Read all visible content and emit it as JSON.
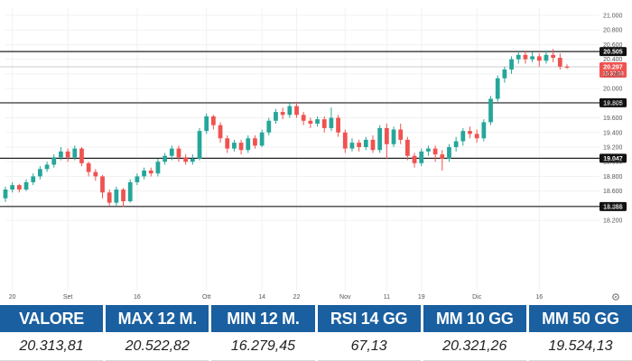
{
  "chart_data": {
    "type": "candlestick",
    "y_ticks": [
      "21.000",
      "20.800",
      "20.600",
      "20.400",
      "20.200",
      "20.000",
      "19.800",
      "19.600",
      "19.400",
      "19.200",
      "19.000",
      "18.800",
      "18.600",
      "18.400",
      "18.200"
    ],
    "x_ticks": [
      {
        "label": "20",
        "idx": 1
      },
      {
        "label": "Set",
        "idx": 9
      },
      {
        "label": "16",
        "idx": 19
      },
      {
        "label": "Ott",
        "idx": 29
      },
      {
        "label": "14",
        "idx": 37
      },
      {
        "label": "22",
        "idx": 42
      },
      {
        "label": "Nov",
        "idx": 49
      },
      {
        "label": "11",
        "idx": 55
      },
      {
        "label": "19",
        "idx": 60
      },
      {
        "label": "Dic",
        "idx": 68
      },
      {
        "label": "16",
        "idx": 77
      }
    ],
    "levels": [
      {
        "value": 20505,
        "label": "20.505"
      },
      {
        "value": 19805,
        "label": "19.805"
      },
      {
        "value": 19047,
        "label": "19.047"
      },
      {
        "value": 18388,
        "label": "18.388"
      }
    ],
    "last_price": {
      "value": 20297,
      "label": "20.297",
      "timer": "15:37:38"
    },
    "up_color": "#26a69a",
    "down_color": "#ef5350",
    "candles": [
      [
        18.5,
        18.62,
        18.45,
        18.66
      ],
      [
        18.62,
        18.68,
        18.58,
        18.72
      ],
      [
        18.68,
        18.62,
        18.58,
        18.7
      ],
      [
        18.62,
        18.72,
        18.6,
        18.76
      ],
      [
        18.72,
        18.8,
        18.68,
        18.84
      ],
      [
        18.8,
        18.9,
        18.76,
        18.94
      ],
      [
        18.9,
        18.96,
        18.86,
        19.0
      ],
      [
        18.96,
        19.06,
        18.92,
        19.1
      ],
      [
        19.06,
        19.14,
        19.02,
        19.2
      ],
      [
        19.14,
        19.06,
        19.0,
        19.18
      ],
      [
        19.06,
        19.18,
        19.02,
        19.22
      ],
      [
        19.18,
        18.98,
        18.94,
        19.2
      ],
      [
        18.98,
        18.86,
        18.8,
        19.0
      ],
      [
        18.86,
        18.8,
        18.74,
        18.9
      ],
      [
        18.8,
        18.58,
        18.5,
        18.82
      ],
      [
        18.58,
        18.44,
        18.4,
        18.62
      ],
      [
        18.44,
        18.62,
        18.4,
        18.66
      ],
      [
        18.62,
        18.46,
        18.38,
        18.64
      ],
      [
        18.46,
        18.72,
        18.44,
        18.76
      ],
      [
        18.72,
        18.8,
        18.68,
        18.84
      ],
      [
        18.8,
        18.88,
        18.76,
        18.92
      ],
      [
        18.88,
        18.84,
        18.8,
        18.92
      ],
      [
        18.84,
        19.0,
        18.8,
        19.04
      ],
      [
        19.0,
        19.08,
        18.96,
        19.12
      ],
      [
        19.08,
        19.18,
        19.02,
        19.22
      ],
      [
        19.18,
        19.06,
        19.0,
        19.22
      ],
      [
        19.06,
        19.0,
        18.96,
        19.1
      ],
      [
        19.0,
        19.04,
        18.96,
        19.1
      ],
      [
        19.04,
        19.42,
        19.02,
        19.46
      ],
      [
        19.42,
        19.62,
        19.38,
        19.66
      ],
      [
        19.62,
        19.5,
        19.44,
        19.64
      ],
      [
        19.5,
        19.32,
        19.26,
        19.54
      ],
      [
        19.32,
        19.18,
        19.12,
        19.36
      ],
      [
        19.18,
        19.26,
        19.14,
        19.3
      ],
      [
        19.26,
        19.16,
        19.1,
        19.3
      ],
      [
        19.16,
        19.32,
        19.12,
        19.36
      ],
      [
        19.32,
        19.22,
        19.18,
        19.36
      ],
      [
        19.22,
        19.4,
        19.2,
        19.44
      ],
      [
        19.4,
        19.56,
        19.36,
        19.6
      ],
      [
        19.56,
        19.68,
        19.52,
        19.72
      ],
      [
        19.68,
        19.64,
        19.58,
        19.74
      ],
      [
        19.64,
        19.76,
        19.6,
        19.8
      ],
      [
        19.76,
        19.64,
        19.6,
        19.82
      ],
      [
        19.64,
        19.56,
        19.5,
        19.68
      ],
      [
        19.56,
        19.52,
        19.46,
        19.6
      ],
      [
        19.52,
        19.58,
        19.48,
        19.62
      ],
      [
        19.58,
        19.46,
        19.4,
        19.62
      ],
      [
        19.46,
        19.6,
        19.42,
        19.74
      ],
      [
        19.6,
        19.4,
        19.34,
        19.64
      ],
      [
        19.4,
        19.18,
        19.12,
        19.44
      ],
      [
        19.18,
        19.26,
        19.14,
        19.32
      ],
      [
        19.26,
        19.2,
        19.14,
        19.3
      ],
      [
        19.2,
        19.3,
        19.16,
        19.34
      ],
      [
        19.3,
        19.16,
        19.12,
        19.36
      ],
      [
        19.16,
        19.46,
        19.12,
        19.5
      ],
      [
        19.46,
        19.24,
        19.04,
        19.52
      ],
      [
        19.24,
        19.44,
        19.2,
        19.48
      ],
      [
        19.44,
        19.3,
        19.24,
        19.52
      ],
      [
        19.3,
        19.08,
        19.02,
        19.34
      ],
      [
        19.08,
        18.98,
        18.92,
        19.12
      ],
      [
        18.98,
        19.14,
        18.94,
        19.18
      ],
      [
        19.14,
        19.18,
        19.08,
        19.22
      ],
      [
        19.18,
        19.1,
        19.0,
        19.22
      ],
      [
        19.1,
        19.04,
        18.88,
        19.16
      ],
      [
        19.04,
        19.2,
        19.0,
        19.24
      ],
      [
        19.2,
        19.28,
        19.14,
        19.34
      ],
      [
        19.28,
        19.42,
        19.22,
        19.46
      ],
      [
        19.42,
        19.38,
        19.32,
        19.48
      ],
      [
        19.38,
        19.32,
        19.26,
        19.44
      ],
      [
        19.32,
        19.54,
        19.28,
        19.58
      ],
      [
        19.54,
        19.86,
        19.5,
        19.9
      ],
      [
        19.86,
        20.14,
        19.82,
        20.18
      ],
      [
        20.14,
        20.26,
        20.08,
        20.3
      ],
      [
        20.26,
        20.4,
        20.2,
        20.44
      ],
      [
        20.4,
        20.46,
        20.34,
        20.52
      ],
      [
        20.46,
        20.4,
        20.34,
        20.52
      ],
      [
        20.4,
        20.44,
        20.36,
        20.5
      ],
      [
        20.44,
        20.38,
        20.3,
        20.48
      ],
      [
        20.38,
        20.46,
        20.34,
        20.52
      ],
      [
        20.46,
        20.42,
        20.36,
        20.54
      ],
      [
        20.42,
        20.3,
        20.26,
        20.48
      ],
      [
        20.3,
        20.297,
        20.27,
        20.33
      ]
    ]
  },
  "stats": [
    {
      "label": "VALORE",
      "value": "20.313,81"
    },
    {
      "label": "MAX 12 M.",
      "value": "20.522,82"
    },
    {
      "label": "MIN 12 M.",
      "value": "16.279,45"
    },
    {
      "label": "RSI 14 GG",
      "value": "67,13"
    },
    {
      "label": "MM 10 GG",
      "value": "20.321,26"
    },
    {
      "label": "MM 50 GG",
      "value": "19.524,13"
    }
  ],
  "colors": {
    "stat_header_bg": "#1a5fa0",
    "level_line": "#222222",
    "last_price_badge": "#ef5350",
    "grid": "#f1f1f1"
  },
  "icons": {
    "settings": "gear-icon"
  }
}
